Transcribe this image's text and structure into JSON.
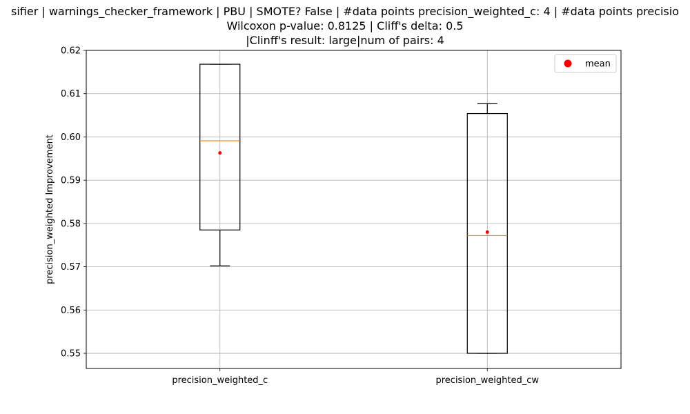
{
  "chart_data": {
    "type": "box",
    "title_lines": [
      "sifier | warnings_checker_framework | PBU | SMOTE? False | #data points precision_weighted_c: 4 | #data points precisio",
      "Wilcoxon p-value: 0.8125 | Cliff's delta: 0.5",
      "|Clinff's result: large|num of pairs: 4"
    ],
    "ylabel": "precision_weighted Improvement",
    "xlabel": "",
    "ylim": [
      0.5465,
      0.62
    ],
    "yticks": [
      "0.55",
      "0.56",
      "0.57",
      "0.58",
      "0.59",
      "0.60",
      "0.61",
      "0.62"
    ],
    "grid": true,
    "legend": {
      "placement": "top-right",
      "entries": [
        {
          "label": "mean",
          "color": "#ff0000",
          "marker": "circle"
        }
      ]
    },
    "colors": {
      "box": "#000000",
      "median": "#ff7f0e",
      "mean": "#ff0000",
      "grid": "#b0b0b0"
    },
    "categories": [
      "precision_weighted_c",
      "precision_weighted_cw"
    ],
    "boxes": [
      {
        "name": "precision_weighted_c",
        "whisker_low": 0.5702,
        "q1": 0.5785,
        "median": 0.5991,
        "q3": 0.6168,
        "whisker_high": 0.6168,
        "mean": 0.5963
      },
      {
        "name": "precision_weighted_cw",
        "whisker_low": 0.55,
        "q1": 0.55,
        "median": 0.5772,
        "q3": 0.6054,
        "whisker_high": 0.6077,
        "mean": 0.578
      }
    ]
  }
}
